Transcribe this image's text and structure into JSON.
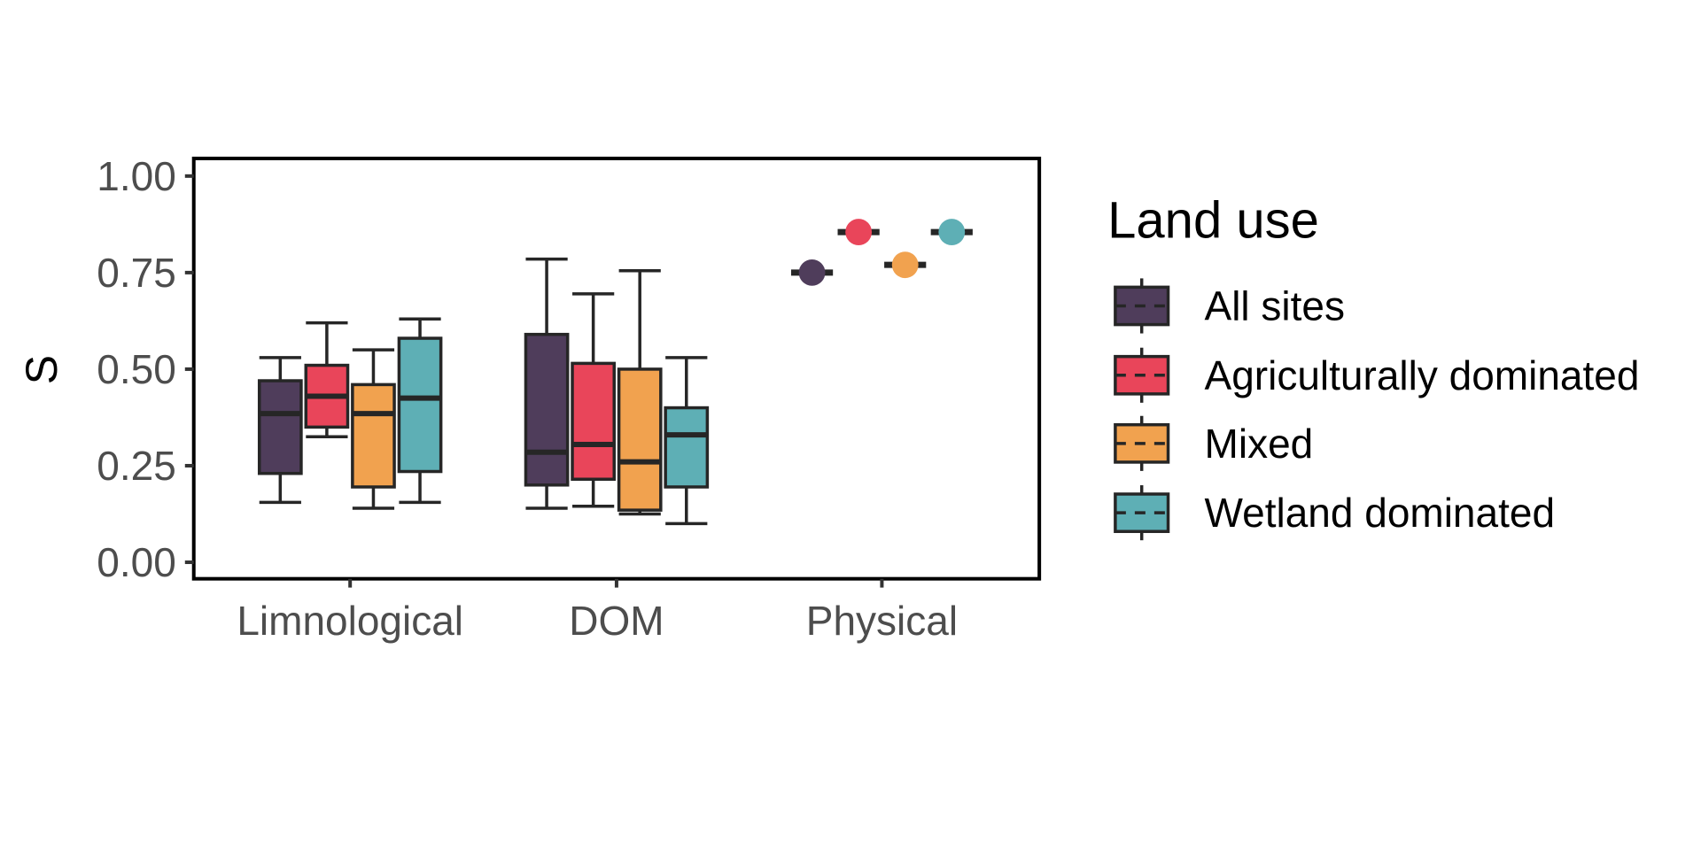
{
  "chart_data": {
    "type": "boxplot",
    "ylabel": "S",
    "xlabel": "",
    "ylim": [
      0,
      1
    ],
    "yticks": [
      "0.00",
      "0.25",
      "0.50",
      "0.75",
      "1.00"
    ],
    "categories": [
      "Limnological",
      "DOM",
      "Physical"
    ],
    "grid": false,
    "legend": {
      "title": "Land use",
      "placement": "right",
      "entries": [
        "All sites",
        "Agriculturally dominated",
        "Mixed",
        "Wetland dominated"
      ]
    },
    "series": [
      {
        "name": "All sites",
        "color": "#4f3d5b",
        "boxes": [
          {
            "category": "Limnological",
            "min": 0.155,
            "q1": 0.23,
            "median": 0.385,
            "q3": 0.47,
            "max": 0.53
          },
          {
            "category": "DOM",
            "min": 0.14,
            "q1": 0.2,
            "median": 0.285,
            "q3": 0.59,
            "max": 0.785
          },
          {
            "category": "Physical",
            "value": 0.75
          }
        ]
      },
      {
        "name": "Agriculturally dominated",
        "color": "#e9455a",
        "boxes": [
          {
            "category": "Limnological",
            "min": 0.325,
            "q1": 0.35,
            "median": 0.43,
            "q3": 0.51,
            "max": 0.62
          },
          {
            "category": "DOM",
            "min": 0.145,
            "q1": 0.215,
            "median": 0.305,
            "q3": 0.515,
            "max": 0.695
          },
          {
            "category": "Physical",
            "value": 0.855
          }
        ]
      },
      {
        "name": "Mixed",
        "color": "#f1a24f",
        "boxes": [
          {
            "category": "Limnological",
            "min": 0.14,
            "q1": 0.195,
            "median": 0.385,
            "q3": 0.46,
            "max": 0.55
          },
          {
            "category": "DOM",
            "min": 0.125,
            "q1": 0.135,
            "median": 0.26,
            "q3": 0.5,
            "max": 0.755
          },
          {
            "category": "Physical",
            "value": 0.77
          }
        ]
      },
      {
        "name": "Wetland dominated",
        "color": "#5eafb5",
        "boxes": [
          {
            "category": "Limnological",
            "min": 0.155,
            "q1": 0.235,
            "median": 0.425,
            "q3": 0.58,
            "max": 0.63
          },
          {
            "category": "DOM",
            "min": 0.1,
            "q1": 0.195,
            "median": 0.33,
            "q3": 0.4,
            "max": 0.53
          },
          {
            "category": "Physical",
            "value": 0.855
          }
        ]
      }
    ]
  }
}
